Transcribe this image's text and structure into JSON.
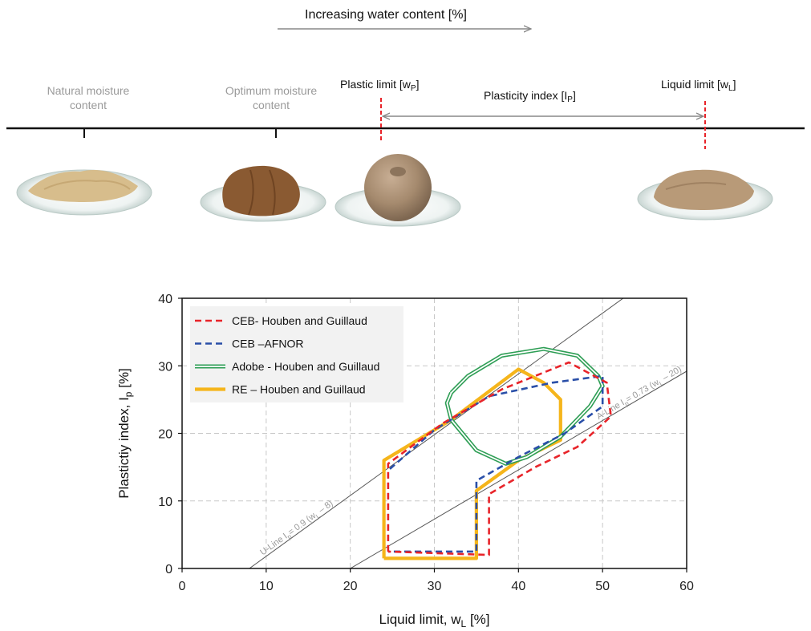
{
  "top_scale": {
    "water_arrow_label": "Increasing water content [%]",
    "natural": {
      "line1": "Natural moisture",
      "line2": "content"
    },
    "optimum": {
      "line1": "Optimum moisture",
      "line2": "content"
    },
    "plastic_limit": {
      "text": "Plastic limit [w",
      "sub": "P",
      "end": "]"
    },
    "plasticity_index": {
      "text": "Plasticity index [I",
      "sub": "P",
      "end": "]"
    },
    "liquid_limit": {
      "text": "Liquid limit [w",
      "sub": "L",
      "end": "]"
    },
    "colors": {
      "timeline": "#111111",
      "marker": "#e8242a",
      "arrow": "#888888"
    }
  },
  "chart_data": {
    "type": "line",
    "xlabel": "Liquid limit, w",
    "xlabel_sub": "L",
    "xlabel_end": " [%]",
    "ylabel": "Plastictiy index, I",
    "ylabel_sub": "p",
    "ylabel_end": " [%]",
    "xlim": [
      0,
      60
    ],
    "ylim": [
      0,
      40
    ],
    "xticks": [
      0,
      10,
      20,
      30,
      40,
      50,
      60
    ],
    "yticks": [
      0,
      10,
      20,
      30,
      40
    ],
    "grid": true,
    "legend_position": "top-left",
    "reference_lines": [
      {
        "name": "U-Line",
        "label": "U-Line I",
        "label_sub": "p",
        "label_end": "= 0.9 (w",
        "label_sub2": "L",
        "label_end2": " – 8)",
        "slope": 0.9,
        "intercept_x": 8
      },
      {
        "name": "A-Line",
        "label": "A-Line I",
        "label_sub": "p",
        "label_end": "= 0.73 (w",
        "label_sub2": "L",
        "label_end2": " – 20)",
        "slope": 0.73,
        "intercept_x": 20
      }
    ],
    "series": [
      {
        "name": "CEB- Houben and Guillaud",
        "color": "#e8242a",
        "style": "dashed",
        "points": [
          [
            24.5,
            2.5
          ],
          [
            24.5,
            15.5
          ],
          [
            31,
            21.5
          ],
          [
            38,
            26.5
          ],
          [
            46,
            30.5
          ],
          [
            50.5,
            27.5
          ],
          [
            51,
            22.5
          ],
          [
            47,
            18
          ],
          [
            42,
            15
          ],
          [
            36.5,
            11
          ],
          [
            36.5,
            2
          ],
          [
            24.5,
            2.5
          ]
        ]
      },
      {
        "name": "CEB –AFNOR",
        "color": "#2a4fa8",
        "style": "dashed",
        "points": [
          [
            24.5,
            2.5
          ],
          [
            24.5,
            14.5
          ],
          [
            30,
            20.5
          ],
          [
            36.5,
            25.5
          ],
          [
            44,
            27.5
          ],
          [
            50,
            28.5
          ],
          [
            50,
            24
          ],
          [
            45.5,
            20
          ],
          [
            40,
            16.5
          ],
          [
            35,
            13
          ],
          [
            35,
            2.5
          ],
          [
            24.5,
            2.5
          ]
        ]
      },
      {
        "name": "Adobe - Houben and Guillaud",
        "color": "#2e9e55",
        "style": "double",
        "points": [
          [
            32,
            26
          ],
          [
            34,
            28.5
          ],
          [
            38,
            31.5
          ],
          [
            43,
            32.5
          ],
          [
            47,
            31.5
          ],
          [
            49.5,
            28.5
          ],
          [
            50,
            27
          ],
          [
            48.5,
            24
          ],
          [
            45,
            19.5
          ],
          [
            41,
            16.5
          ],
          [
            38.5,
            15.5
          ],
          [
            35,
            17.5
          ],
          [
            32,
            22
          ],
          [
            31.5,
            24.5
          ],
          [
            32,
            26
          ]
        ]
      },
      {
        "name": "RE – Houben and Guillaud",
        "color": "#f5b51b",
        "style": "solid-thick",
        "points": [
          [
            24,
            1.5
          ],
          [
            24,
            16
          ],
          [
            32,
            22
          ],
          [
            40,
            29.5
          ],
          [
            43,
            27.5
          ],
          [
            45,
            25
          ],
          [
            45,
            19
          ],
          [
            40,
            16
          ],
          [
            35,
            11.5
          ],
          [
            35,
            1.5
          ],
          [
            24,
            1.5
          ]
        ]
      }
    ]
  }
}
